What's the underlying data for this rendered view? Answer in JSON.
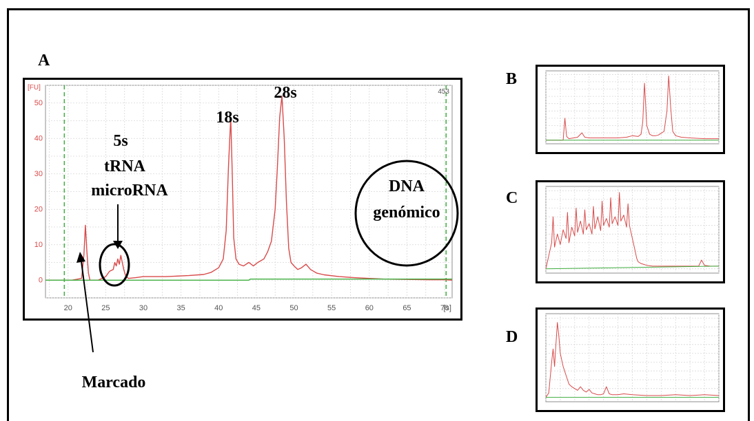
{
  "panel_labels": {
    "a": "A",
    "b": "B",
    "c": "C",
    "d": "D"
  },
  "marker_label": "Marcado",
  "chart_data": [
    {
      "type": "line",
      "panel": "A",
      "ylabel": "[FU]",
      "xlabel": "[s]",
      "corner_value": "453",
      "xlim": [
        17,
        71
      ],
      "ylim": [
        -5,
        55
      ],
      "xticks": [
        20,
        25,
        30,
        35,
        40,
        45,
        50,
        55,
        60,
        65,
        70
      ],
      "yticks": [
        0,
        10,
        20,
        30,
        40,
        50
      ],
      "grid": true,
      "marker_lines_x": [
        19.5,
        70.2
      ],
      "annotations": {
        "peak_28s": "28s",
        "peak_18s": "18s",
        "small_rna_1": "5s",
        "small_rna_2": "tRNA",
        "small_rna_3": "microRNA",
        "dna_1": "DNA",
        "dna_2": "genómico"
      },
      "series": [
        {
          "color": "#d94a4a",
          "x": [
            17,
            19,
            20.5,
            21.8,
            22.1,
            22.3,
            22.5,
            22.7,
            22.9,
            23.3,
            24,
            25,
            25.5,
            26,
            26.2,
            26.4,
            26.6,
            26.8,
            27,
            27.2,
            27.4,
            27.6,
            28,
            29,
            30,
            33,
            36,
            38,
            39,
            40,
            40.6,
            41,
            41.3,
            41.6,
            41.8,
            42,
            42.3,
            42.7,
            43.3,
            44,
            44.6,
            45.2,
            46,
            46.5,
            47,
            47.5,
            47.8,
            48.1,
            48.4,
            48.7,
            49,
            49.3,
            49.6,
            50,
            50.5,
            51,
            51.6,
            52.2,
            53,
            54,
            56,
            58,
            60,
            62,
            65,
            68,
            70,
            71
          ],
          "y": [
            0,
            0,
            0,
            0.5,
            7,
            15.5,
            8,
            2,
            0,
            0,
            0,
            1,
            2.5,
            3,
            5,
            4,
            6,
            4.5,
            7,
            5,
            3,
            1.5,
            0.5,
            0.7,
            1,
            1,
            1.3,
            1.6,
            2.2,
            3.5,
            6,
            14,
            32,
            46,
            30,
            12,
            6,
            4.5,
            4,
            5,
            4,
            5,
            6,
            8,
            11,
            20,
            32,
            46,
            52,
            40,
            22,
            9,
            5,
            4,
            3,
            3.5,
            4.5,
            3,
            2,
            1.5,
            1,
            0.7,
            0.5,
            0.3,
            0.2,
            0.1,
            0.1,
            0
          ]
        },
        {
          "color": "#3fae3f",
          "x": [
            17,
            19.5,
            44,
            44.2,
            70,
            71
          ],
          "y": [
            0,
            0,
            0,
            0.3,
            0.3,
            0.3
          ]
        }
      ]
    },
    {
      "type": "line",
      "panel": "B",
      "xlim": [
        15,
        75
      ],
      "ylim": [
        -5,
        95
      ],
      "grid": true,
      "series": [
        {
          "color": "#d94a4a",
          "x": [
            15,
            18,
            21,
            21.6,
            22.2,
            23,
            26,
            27.5,
            28.5,
            30,
            35,
            40,
            43,
            45,
            47,
            48,
            48.6,
            49.2,
            50,
            51,
            52,
            53,
            54,
            56,
            57,
            57.6,
            58.3,
            59,
            60,
            62,
            65,
            70,
            75
          ],
          "y": [
            0,
            0,
            0,
            30,
            5,
            2,
            4,
            10,
            4,
            3,
            3,
            3,
            4,
            6,
            5,
            8,
            25,
            78,
            20,
            8,
            6,
            6,
            7,
            12,
            40,
            88,
            45,
            12,
            6,
            4,
            3,
            2,
            2
          ]
        },
        {
          "color": "#3fae3f",
          "x": [
            15,
            75
          ],
          "y": [
            0,
            0
          ]
        }
      ]
    },
    {
      "type": "line",
      "panel": "C",
      "xlim": [
        15,
        75
      ],
      "ylim": [
        -5,
        95
      ],
      "grid": true,
      "series": [
        {
          "color": "#d94a4a",
          "x": [
            15,
            16,
            17,
            17.5,
            18,
            19,
            20,
            21,
            22,
            22.5,
            23,
            24,
            25,
            25.5,
            26,
            27,
            28,
            28.5,
            29,
            30,
            31,
            31.5,
            32,
            33,
            34,
            34.5,
            35,
            36,
            37,
            37.5,
            38,
            39,
            40,
            40.5,
            41,
            42,
            43,
            43.5,
            44,
            45,
            46,
            46.5,
            47,
            48,
            49,
            50,
            52,
            55,
            58,
            60,
            62,
            65,
            68,
            69,
            70,
            72,
            75
          ],
          "y": [
            0,
            15,
            30,
            60,
            25,
            40,
            28,
            45,
            35,
            65,
            30,
            48,
            38,
            70,
            42,
            55,
            40,
            68,
            45,
            52,
            40,
            72,
            46,
            60,
            44,
            78,
            50,
            58,
            48,
            82,
            52,
            60,
            50,
            88,
            55,
            62,
            48,
            75,
            50,
            35,
            20,
            12,
            8,
            6,
            5,
            4,
            3,
            3,
            3,
            3,
            3,
            3,
            3,
            10,
            4,
            3,
            3
          ]
        },
        {
          "color": "#3fae3f",
          "x": [
            15,
            75
          ],
          "y": [
            0,
            3
          ]
        }
      ]
    },
    {
      "type": "line",
      "panel": "D",
      "xlim": [
        15,
        75
      ],
      "ylim": [
        -5,
        95
      ],
      "grid": true,
      "series": [
        {
          "color": "#d94a4a",
          "x": [
            15,
            16,
            17,
            17.5,
            18,
            18.5,
            19,
            19.5,
            20,
            21,
            22,
            23,
            24,
            25,
            26,
            27,
            28,
            29,
            30,
            31,
            32,
            33,
            34,
            35,
            36,
            37,
            38,
            40,
            42,
            45,
            50,
            55,
            60,
            65,
            70,
            75
          ],
          "y": [
            0,
            5,
            40,
            55,
            35,
            60,
            85,
            70,
            50,
            35,
            25,
            15,
            12,
            10,
            8,
            12,
            8,
            6,
            9,
            5,
            4,
            3,
            3,
            4,
            12,
            4,
            3,
            3,
            4,
            3,
            2,
            2,
            3,
            2,
            3,
            2
          ]
        },
        {
          "color": "#3fae3f",
          "x": [
            15,
            75
          ],
          "y": [
            0,
            0
          ]
        }
      ]
    }
  ]
}
